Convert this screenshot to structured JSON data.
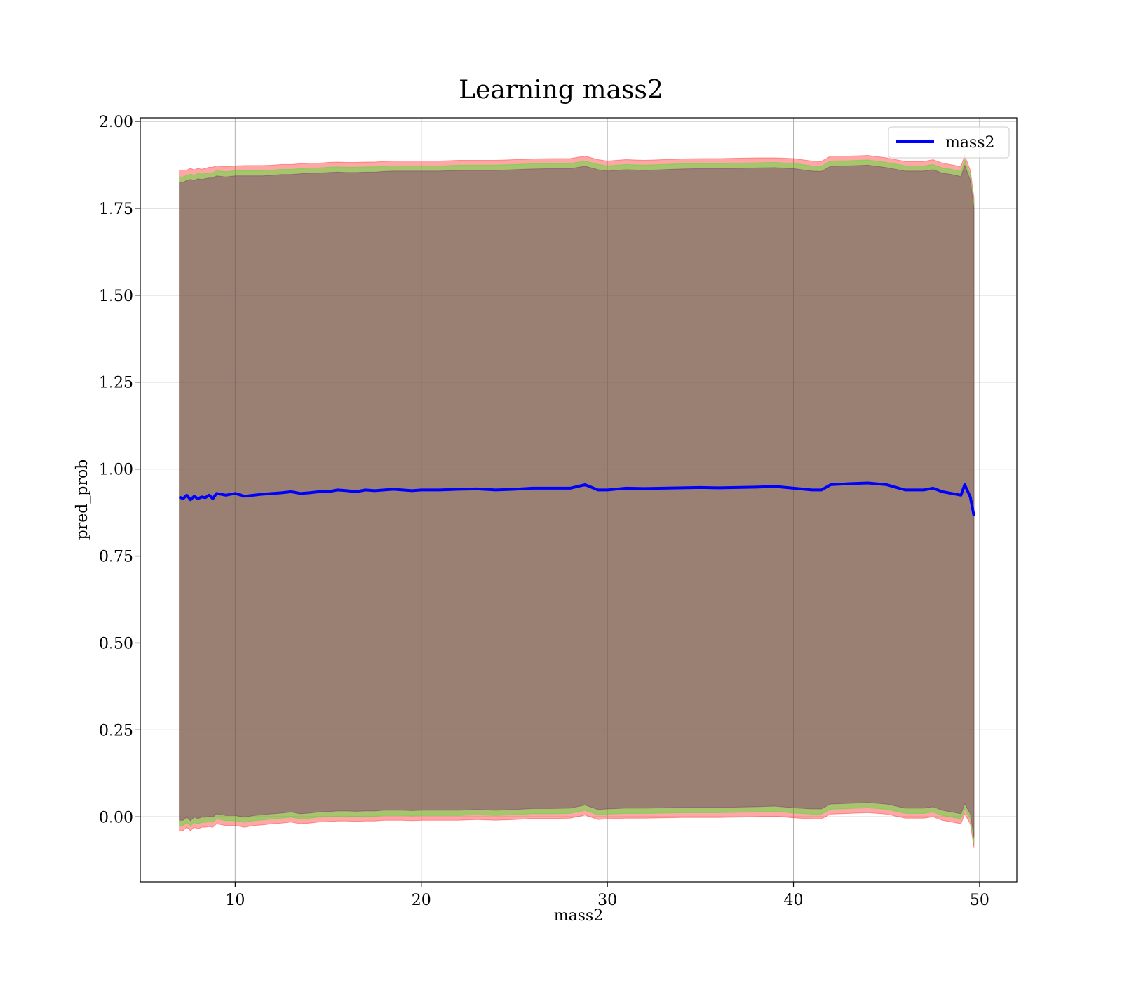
{
  "chart_data": {
    "type": "line",
    "title": "Learning mass2",
    "xlabel": "mass2",
    "ylabel": "pred_prob",
    "xlim": [
      4.9,
      52
    ],
    "ylim": [
      -0.187,
      2.01
    ],
    "xticks": [
      10,
      20,
      30,
      40,
      50
    ],
    "xtick_labels": [
      "10",
      "20",
      "30",
      "40",
      "50"
    ],
    "yticks": [
      0.0,
      0.25,
      0.5,
      0.75,
      1.0,
      1.25,
      1.5,
      1.75,
      2.0
    ],
    "ytick_labels": [
      "0.00",
      "0.25",
      "0.50",
      "0.75",
      "1.00",
      "1.25",
      "1.50",
      "1.75",
      "2.00"
    ],
    "grid": true,
    "legend": {
      "placement": "top-right",
      "entries": [
        "mass2"
      ]
    },
    "series": [
      {
        "name": "mass2",
        "color": "#0000ff",
        "x": [
          7.0,
          7.2,
          7.4,
          7.6,
          7.8,
          8.0,
          8.2,
          8.4,
          8.6,
          8.8,
          9.0,
          9.5,
          10.0,
          10.5,
          11.0,
          11.5,
          12.0,
          12.5,
          13.0,
          13.5,
          14.0,
          14.5,
          15.0,
          15.5,
          16.0,
          16.5,
          17.0,
          17.5,
          18.0,
          18.5,
          19.0,
          19.5,
          20.0,
          21.0,
          22.0,
          23.0,
          24.0,
          25.0,
          26.0,
          27.0,
          28.0,
          28.8,
          29.5,
          30.0,
          31.0,
          32.0,
          33.0,
          34.0,
          35.0,
          36.0,
          37.0,
          38.0,
          39.0,
          40.0,
          41.0,
          41.5,
          42.0,
          43.0,
          44.0,
          45.0,
          46.0,
          47.0,
          47.5,
          48.0,
          48.5,
          49.0,
          49.2,
          49.5,
          49.7
        ],
        "values": [
          0.92,
          0.915,
          0.925,
          0.912,
          0.922,
          0.915,
          0.92,
          0.918,
          0.925,
          0.915,
          0.93,
          0.925,
          0.93,
          0.922,
          0.925,
          0.928,
          0.93,
          0.932,
          0.935,
          0.93,
          0.932,
          0.935,
          0.935,
          0.94,
          0.938,
          0.935,
          0.94,
          0.938,
          0.94,
          0.942,
          0.94,
          0.938,
          0.94,
          0.94,
          0.942,
          0.943,
          0.94,
          0.942,
          0.945,
          0.945,
          0.945,
          0.955,
          0.94,
          0.94,
          0.945,
          0.944,
          0.945,
          0.946,
          0.947,
          0.946,
          0.947,
          0.948,
          0.95,
          0.945,
          0.94,
          0.94,
          0.955,
          0.958,
          0.96,
          0.955,
          0.94,
          0.94,
          0.945,
          0.935,
          0.93,
          0.925,
          0.955,
          0.92,
          0.865
        ]
      }
    ],
    "bands": [
      {
        "color": "#ff0000",
        "upper": [
          1.86,
          1.86,
          1.86,
          1.865,
          1.86,
          1.865,
          1.862,
          1.865,
          1.868,
          1.868,
          1.872,
          1.87,
          1.872,
          1.873,
          1.873,
          1.873,
          1.874,
          1.876,
          1.876,
          1.878,
          1.88,
          1.88,
          1.882,
          1.883,
          1.882,
          1.882,
          1.883,
          1.883,
          1.885,
          1.886,
          1.886,
          1.886,
          1.886,
          1.886,
          1.888,
          1.888,
          1.888,
          1.89,
          1.892,
          1.893,
          1.893,
          1.9,
          1.89,
          1.886,
          1.89,
          1.888,
          1.89,
          1.892,
          1.893,
          1.893,
          1.894,
          1.895,
          1.895,
          1.893,
          1.886,
          1.885,
          1.9,
          1.9,
          1.902,
          1.895,
          1.885,
          1.885,
          1.89,
          1.88,
          1.875,
          1.87,
          1.902,
          1.86,
          1.78
        ],
        "lower": [
          -0.04,
          -0.04,
          -0.03,
          -0.04,
          -0.03,
          -0.035,
          -0.03,
          -0.03,
          -0.028,
          -0.03,
          -0.02,
          -0.025,
          -0.025,
          -0.03,
          -0.025,
          -0.023,
          -0.02,
          -0.018,
          -0.015,
          -0.02,
          -0.018,
          -0.015,
          -0.014,
          -0.012,
          -0.012,
          -0.013,
          -0.012,
          -0.012,
          -0.01,
          -0.01,
          -0.01,
          -0.011,
          -0.01,
          -0.01,
          -0.01,
          -0.008,
          -0.01,
          -0.008,
          -0.005,
          -0.005,
          -0.004,
          0.005,
          -0.008,
          -0.006,
          -0.004,
          -0.004,
          -0.003,
          -0.002,
          -0.002,
          -0.002,
          -0.001,
          0.0,
          0.002,
          -0.003,
          -0.006,
          -0.006,
          0.008,
          0.01,
          0.012,
          0.008,
          -0.004,
          -0.004,
          0.0,
          -0.01,
          -0.015,
          -0.02,
          0.008,
          -0.02,
          -0.09
        ]
      },
      {
        "color": "#00ff00",
        "upper": [
          1.84,
          1.84,
          1.845,
          1.848,
          1.845,
          1.85,
          1.848,
          1.85,
          1.852,
          1.852,
          1.858,
          1.855,
          1.858,
          1.858,
          1.858,
          1.858,
          1.86,
          1.862,
          1.862,
          1.864,
          1.866,
          1.866,
          1.868,
          1.869,
          1.868,
          1.868,
          1.869,
          1.869,
          1.871,
          1.872,
          1.872,
          1.872,
          1.872,
          1.872,
          1.874,
          1.874,
          1.874,
          1.876,
          1.878,
          1.879,
          1.879,
          1.886,
          1.876,
          1.872,
          1.876,
          1.874,
          1.876,
          1.878,
          1.879,
          1.879,
          1.88,
          1.881,
          1.882,
          1.879,
          1.872,
          1.871,
          1.886,
          1.887,
          1.889,
          1.882,
          1.872,
          1.872,
          1.876,
          1.866,
          1.862,
          1.856,
          1.888,
          1.846,
          1.765
        ],
        "lower": [
          -0.025,
          -0.025,
          -0.016,
          -0.026,
          -0.016,
          -0.02,
          -0.016,
          -0.016,
          -0.014,
          -0.016,
          -0.006,
          -0.011,
          -0.011,
          -0.016,
          -0.011,
          -0.009,
          -0.006,
          -0.004,
          -0.001,
          -0.006,
          -0.004,
          -0.001,
          0.0,
          0.002,
          0.002,
          0.001,
          0.002,
          0.002,
          0.004,
          0.004,
          0.004,
          0.003,
          0.004,
          0.004,
          0.004,
          0.006,
          0.004,
          0.006,
          0.009,
          0.009,
          0.01,
          0.019,
          0.006,
          0.008,
          0.01,
          0.01,
          0.011,
          0.012,
          0.012,
          0.012,
          0.013,
          0.014,
          0.016,
          0.011,
          0.008,
          0.008,
          0.022,
          0.024,
          0.026,
          0.022,
          0.01,
          0.01,
          0.014,
          0.004,
          -0.001,
          -0.006,
          0.022,
          -0.006,
          -0.075
        ]
      },
      {
        "color": "#800080",
        "upper": [
          1.825,
          1.825,
          1.83,
          1.833,
          1.83,
          1.835,
          1.833,
          1.835,
          1.837,
          1.837,
          1.843,
          1.84,
          1.843,
          1.843,
          1.843,
          1.843,
          1.845,
          1.847,
          1.847,
          1.849,
          1.851,
          1.851,
          1.853,
          1.854,
          1.853,
          1.853,
          1.854,
          1.854,
          1.856,
          1.857,
          1.857,
          1.857,
          1.857,
          1.857,
          1.859,
          1.859,
          1.859,
          1.861,
          1.863,
          1.864,
          1.864,
          1.871,
          1.861,
          1.857,
          1.861,
          1.859,
          1.861,
          1.863,
          1.864,
          1.864,
          1.865,
          1.866,
          1.867,
          1.864,
          1.857,
          1.856,
          1.871,
          1.872,
          1.874,
          1.867,
          1.857,
          1.857,
          1.861,
          1.851,
          1.847,
          1.841,
          1.873,
          1.831,
          1.75
        ],
        "lower": [
          -0.01,
          -0.01,
          -0.001,
          -0.011,
          -0.001,
          -0.005,
          -0.001,
          -0.001,
          0.001,
          -0.001,
          0.009,
          0.004,
          0.004,
          -0.001,
          0.004,
          0.006,
          0.009,
          0.011,
          0.014,
          0.009,
          0.011,
          0.014,
          0.015,
          0.017,
          0.017,
          0.016,
          0.017,
          0.017,
          0.019,
          0.019,
          0.019,
          0.018,
          0.019,
          0.019,
          0.019,
          0.021,
          0.019,
          0.021,
          0.024,
          0.024,
          0.025,
          0.034,
          0.021,
          0.023,
          0.025,
          0.025,
          0.026,
          0.027,
          0.027,
          0.027,
          0.028,
          0.029,
          0.031,
          0.026,
          0.023,
          0.023,
          0.037,
          0.039,
          0.041,
          0.037,
          0.025,
          0.025,
          0.029,
          0.019,
          0.014,
          0.009,
          0.037,
          0.009,
          -0.06
        ]
      }
    ]
  }
}
